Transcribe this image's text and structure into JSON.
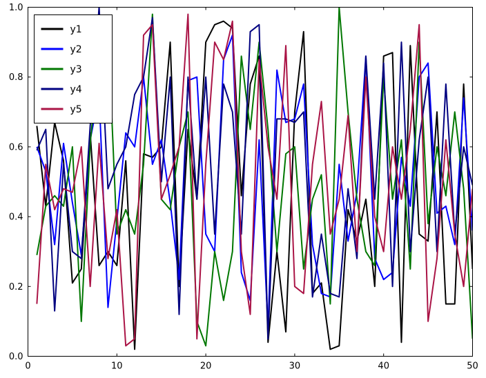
{
  "chart_data": {
    "type": "line",
    "title": "",
    "xlabel": "",
    "ylabel": "",
    "xlim": [
      0,
      50
    ],
    "ylim": [
      0.0,
      1.0
    ],
    "grid": false,
    "legend_position": "upper-left",
    "x_ticks": [
      0,
      10,
      20,
      30,
      40,
      50
    ],
    "x_tick_labels": [
      "0",
      "10",
      "20",
      "30",
      "40",
      "50"
    ],
    "y_ticks": [
      0.0,
      0.2,
      0.4,
      0.6,
      0.8,
      1.0
    ],
    "y_tick_labels": [
      "0.0",
      "0.2",
      "0.4",
      "0.6",
      "0.8",
      "1.0"
    ],
    "x": [
      1,
      2,
      3,
      4,
      5,
      6,
      7,
      8,
      9,
      10,
      11,
      12,
      13,
      14,
      15,
      16,
      17,
      18,
      19,
      20,
      21,
      22,
      23,
      24,
      25,
      26,
      27,
      28,
      29,
      30,
      31,
      32,
      33,
      34,
      35,
      36,
      37,
      38,
      39,
      40,
      41,
      42,
      43,
      44,
      45,
      46,
      47,
      48,
      49,
      50
    ],
    "series": [
      {
        "name": "y1",
        "color": "#000000",
        "values": [
          0.66,
          0.43,
          0.67,
          0.56,
          0.21,
          0.25,
          0.64,
          0.26,
          0.3,
          0.26,
          0.56,
          0.02,
          0.58,
          0.57,
          0.6,
          0.9,
          0.2,
          0.65,
          0.45,
          0.9,
          0.95,
          0.96,
          0.94,
          0.46,
          0.78,
          0.86,
          0.04,
          0.3,
          0.07,
          0.7,
          0.93,
          0.18,
          0.21,
          0.02,
          0.03,
          0.42,
          0.33,
          0.45,
          0.2,
          0.86,
          0.87,
          0.04,
          0.89,
          0.35,
          0.33,
          0.7,
          0.15,
          0.15,
          0.78,
          0.25
        ]
      },
      {
        "name": "y2",
        "color": "#0000ff",
        "values": [
          0.6,
          0.53,
          0.32,
          0.61,
          0.44,
          0.29,
          0.62,
          0.75,
          0.14,
          0.39,
          0.64,
          0.6,
          0.8,
          0.55,
          0.62,
          0.44,
          0.22,
          0.79,
          0.8,
          0.35,
          0.3,
          0.85,
          0.92,
          0.24,
          0.16,
          0.62,
          0.08,
          0.82,
          0.67,
          0.68,
          0.78,
          0.32,
          0.18,
          0.17,
          0.55,
          0.33,
          0.47,
          0.86,
          0.28,
          0.22,
          0.24,
          0.57,
          0.43,
          0.8,
          0.84,
          0.41,
          0.43,
          0.32,
          0.74,
          0.36
        ]
      },
      {
        "name": "y3",
        "color": "#007700",
        "values": [
          0.29,
          0.43,
          0.46,
          0.43,
          0.6,
          0.1,
          0.61,
          0.87,
          0.94,
          0.35,
          0.42,
          0.35,
          0.55,
          0.98,
          0.45,
          0.42,
          0.6,
          0.7,
          0.1,
          0.03,
          0.3,
          0.16,
          0.3,
          0.86,
          0.65,
          0.9,
          0.65,
          0.3,
          0.58,
          0.6,
          0.25,
          0.45,
          0.52,
          0.15,
          1.0,
          0.7,
          0.45,
          0.3,
          0.26,
          0.8,
          0.45,
          0.62,
          0.25,
          0.9,
          0.38,
          0.6,
          0.46,
          0.7,
          0.48,
          0.05
        ]
      },
      {
        "name": "y4",
        "color": "#000080",
        "values": [
          0.59,
          0.65,
          0.13,
          0.55,
          0.3,
          0.28,
          0.66,
          1.0,
          0.48,
          0.55,
          0.6,
          0.75,
          0.8,
          0.97,
          0.5,
          0.8,
          0.12,
          0.8,
          0.45,
          0.8,
          0.35,
          0.78,
          0.7,
          0.35,
          0.93,
          0.95,
          0.05,
          0.68,
          0.68,
          0.67,
          0.7,
          0.17,
          0.35,
          0.18,
          0.17,
          0.48,
          0.28,
          0.86,
          0.45,
          0.84,
          0.2,
          0.9,
          0.3,
          0.62,
          0.8,
          0.3,
          0.78,
          0.35,
          0.6,
          0.49
        ]
      },
      {
        "name": "y5",
        "color": "#aa1446",
        "values": [
          0.15,
          0.55,
          0.42,
          0.48,
          0.47,
          0.6,
          0.2,
          0.61,
          0.28,
          0.42,
          0.03,
          0.05,
          0.92,
          0.95,
          0.45,
          0.52,
          0.6,
          0.98,
          0.05,
          0.55,
          0.9,
          0.85,
          0.96,
          0.3,
          0.12,
          0.85,
          0.6,
          0.45,
          0.89,
          0.2,
          0.18,
          0.55,
          0.73,
          0.35,
          0.45,
          0.69,
          0.3,
          0.8,
          0.4,
          0.3,
          0.6,
          0.45,
          0.65,
          0.95,
          0.1,
          0.28,
          0.62,
          0.35,
          0.2,
          0.48
        ]
      }
    ]
  },
  "legend": {
    "labels": [
      "y1",
      "y2",
      "y3",
      "y4",
      "y5"
    ]
  }
}
